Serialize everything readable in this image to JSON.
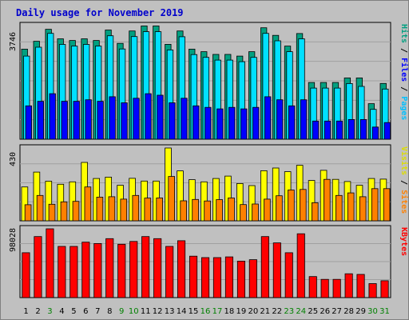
{
  "chart_data": [
    {
      "type": "bar",
      "title": "Daily usage for November 2019",
      "categories": [
        "1",
        "2",
        "3",
        "4",
        "5",
        "6",
        "7",
        "8",
        "9",
        "10",
        "11",
        "12",
        "13",
        "14",
        "15",
        "16",
        "17",
        "18",
        "19",
        "20",
        "21",
        "22",
        "23",
        "24",
        "25",
        "26",
        "27",
        "28",
        "29",
        "30",
        "31"
      ],
      "weekend_days": [
        "3",
        "9",
        "10",
        "16",
        "17",
        "23",
        "24",
        "30",
        "31"
      ],
      "ylim": [
        0,
        3746
      ],
      "ymax_label": "3746",
      "right_axis_parts": [
        "Pages",
        "Files",
        "Hits"
      ],
      "series": [
        {
          "name": "Hits",
          "values": [
            2970,
            3230,
            3625,
            3310,
            3255,
            3310,
            3255,
            3600,
            3160,
            3570,
            3735,
            3735,
            3130,
            3570,
            2970,
            2885,
            2795,
            2795,
            2740,
            2885,
            3675,
            3425,
            3070,
            3485,
            1870,
            1870,
            1870,
            2020,
            2020,
            1170,
            1840
          ],
          "color": "#00a080"
        },
        {
          "name": "Files",
          "values": [
            2740,
            3035,
            3490,
            3125,
            3070,
            3125,
            3070,
            3410,
            2975,
            3385,
            3545,
            3545,
            2945,
            3380,
            2790,
            2700,
            2610,
            2610,
            2555,
            2700,
            3490,
            3245,
            2885,
            3310,
            1685,
            1685,
            1685,
            1835,
            1740,
            985,
            1655
          ],
          "color": "#00e0ff"
        },
        {
          "name": "Pages",
          "values": [
            1100,
            1250,
            1500,
            1250,
            1250,
            1300,
            1250,
            1400,
            1200,
            1350,
            1500,
            1450,
            1200,
            1350,
            1100,
            1050,
            1000,
            1050,
            1000,
            1050,
            1400,
            1300,
            1100,
            1300,
            600,
            600,
            600,
            650,
            650,
            400,
            550
          ],
          "color": "#0000ff"
        }
      ]
    },
    {
      "type": "bar",
      "categories": [
        "1",
        "2",
        "3",
        "4",
        "5",
        "6",
        "7",
        "8",
        "9",
        "10",
        "11",
        "12",
        "13",
        "14",
        "15",
        "16",
        "17",
        "18",
        "19",
        "20",
        "21",
        "22",
        "23",
        "24",
        "25",
        "26",
        "27",
        "28",
        "29",
        "30",
        "31"
      ],
      "ylim": [
        0,
        430
      ],
      "ymax_label": "430",
      "right_axis_parts": [
        "Sites",
        "Visits"
      ],
      "series": [
        {
          "name": "Visits",
          "values": [
            200,
            288,
            234,
            216,
            230,
            345,
            250,
            258,
            210,
            251,
            235,
            235,
            430,
            295,
            243,
            230,
            250,
            264,
            220,
            208,
            296,
            312,
            290,
            328,
            238,
            298,
            245,
            232,
            210,
            250,
            246
          ],
          "color": "#ffff00"
        },
        {
          "name": "Sites",
          "values": [
            95,
            150,
            98,
            112,
            115,
            200,
            140,
            142,
            128,
            150,
            134,
            135,
            262,
            118,
            126,
            117,
            125,
            135,
            96,
            99,
            128,
            148,
            182,
            185,
            107,
            245,
            150,
            165,
            142,
            190,
            190
          ],
          "color": "#ff8000"
        }
      ]
    },
    {
      "type": "bar",
      "categories": [
        "1",
        "2",
        "3",
        "4",
        "5",
        "6",
        "7",
        "8",
        "9",
        "10",
        "11",
        "12",
        "13",
        "14",
        "15",
        "16",
        "17",
        "18",
        "19",
        "20",
        "21",
        "22",
        "23",
        "24",
        "25",
        "26",
        "27",
        "28",
        "29",
        "30",
        "31"
      ],
      "ylim": [
        0,
        98028
      ],
      "ymax_label": "98028",
      "right_axis_parts": [
        "KBytes"
      ],
      "series": [
        {
          "name": "KBytes",
          "values": [
            64000,
            87000,
            98028,
            73000,
            73000,
            79000,
            77000,
            84000,
            76000,
            80000,
            87000,
            84000,
            73000,
            81000,
            59000,
            57000,
            57000,
            58000,
            52000,
            54000,
            87000,
            78000,
            64000,
            91000,
            30000,
            26000,
            26000,
            34000,
            33000,
            20000,
            24000
          ],
          "color": "#ff0000"
        }
      ]
    }
  ]
}
